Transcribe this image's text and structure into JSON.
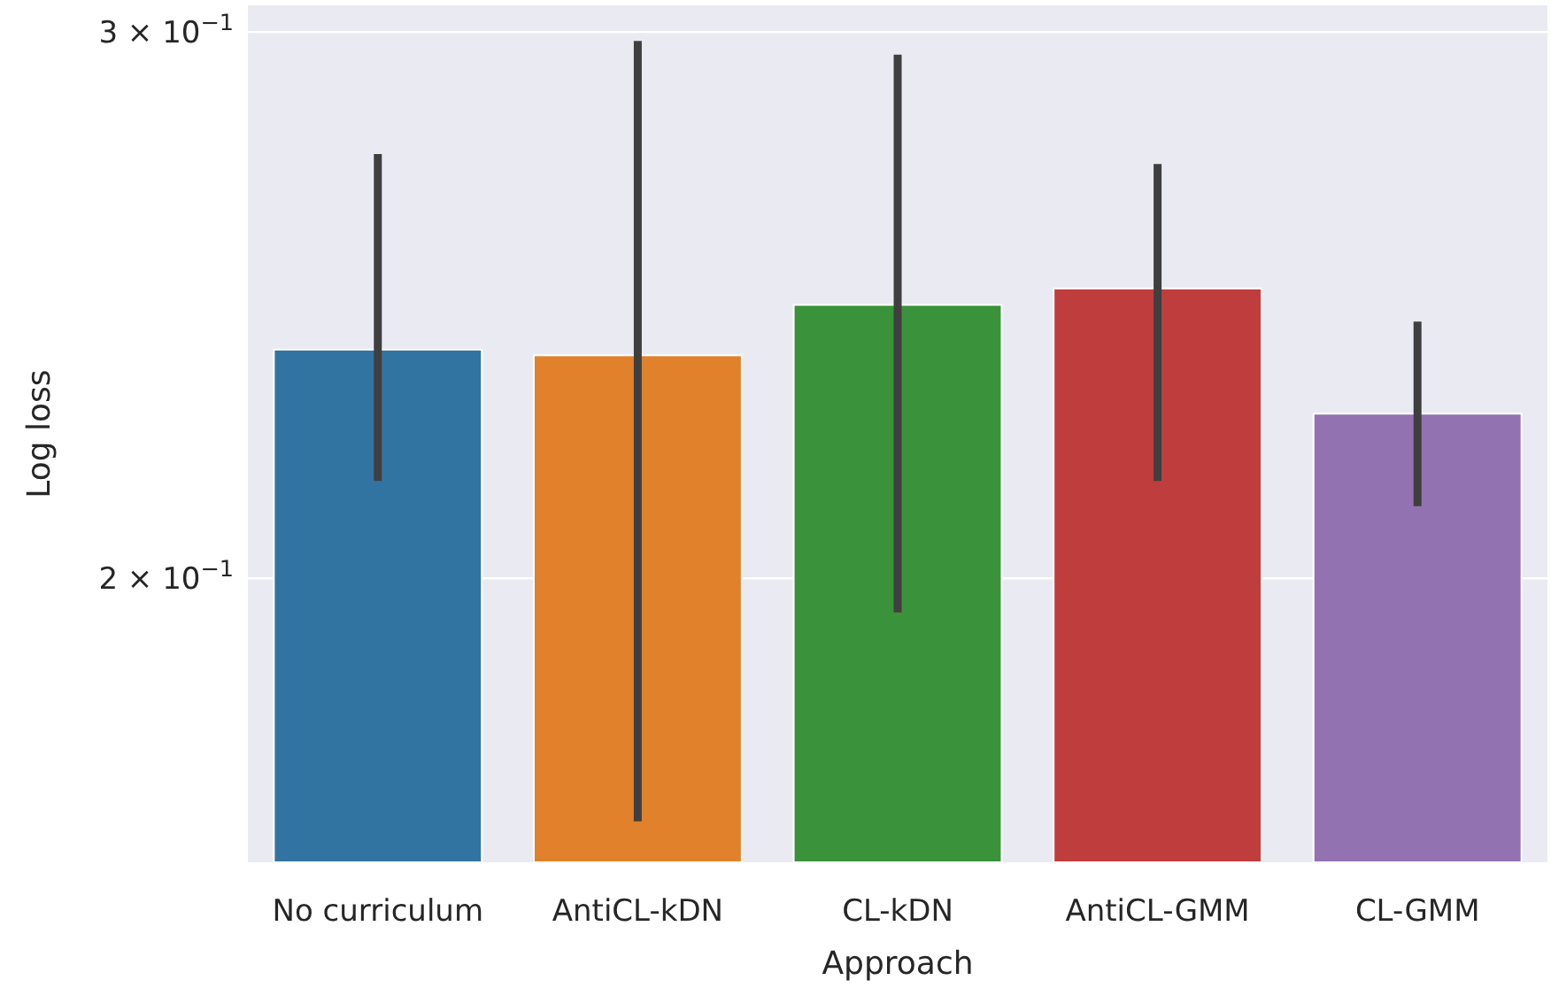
{
  "chart_data": {
    "type": "bar",
    "xlabel": "Approach",
    "ylabel": "Log loss",
    "categories": [
      "No curriculum",
      "AntiCL-kDN",
      "CL-kDN",
      "AntiCL-GMM",
      "CL-GMM"
    ],
    "values": [
      0.237,
      0.236,
      0.245,
      0.248,
      0.226
    ],
    "colors": [
      "#3274a1",
      "#e1812c",
      "#3a923a",
      "#c03d3e",
      "#9372b2"
    ],
    "errors": [
      [
        0.215,
        0.274
      ],
      [
        0.167,
        0.298
      ],
      [
        0.195,
        0.295
      ],
      [
        0.215,
        0.272
      ],
      [
        0.211,
        0.242
      ]
    ],
    "log": "y",
    "ylim": [
      0.162,
      0.306
    ],
    "yticks": [
      {
        "value": 0.2,
        "label": "2 × 10$^{−1}$"
      },
      {
        "value": 0.3,
        "label": "3 × 10$^{−1}$"
      }
    ],
    "grid": "y"
  }
}
